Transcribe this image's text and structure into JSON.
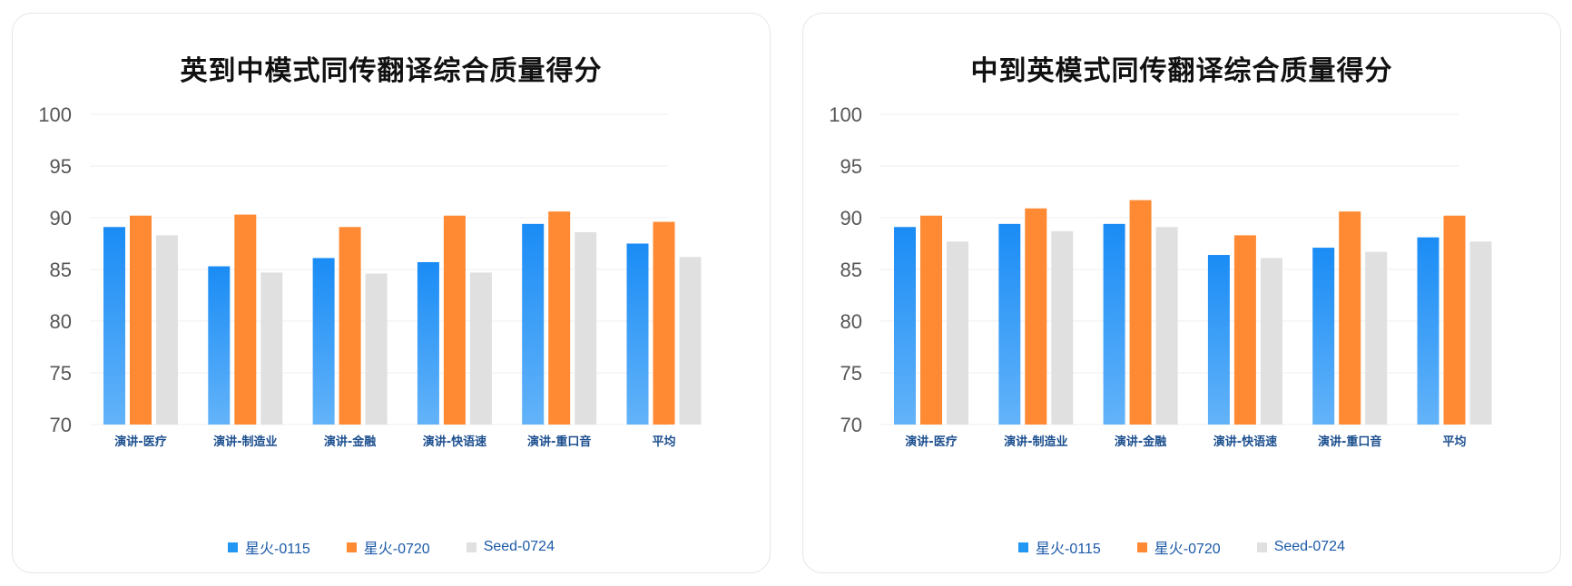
{
  "chart_data": [
    {
      "type": "bar",
      "title": "英到中模式同传翻译综合质量得分",
      "categories": [
        "演讲-医疗",
        "演讲-制造业",
        "演讲-金融",
        "演讲-快语速",
        "演讲-重口音",
        "平均"
      ],
      "series": [
        {
          "name": "星火-0115",
          "values": [
            89.1,
            85.3,
            86.1,
            85.7,
            89.4,
            87.5
          ],
          "color": "#2196f3"
        },
        {
          "name": "星火-0720",
          "values": [
            90.2,
            90.3,
            89.1,
            90.2,
            90.6,
            89.6
          ],
          "color": "#ff8a33"
        },
        {
          "name": "Seed-0724",
          "values": [
            88.3,
            84.7,
            84.6,
            84.7,
            88.6,
            86.2
          ],
          "color": "#e0e0e0"
        }
      ],
      "ylim": [
        70,
        100
      ],
      "yticks": [
        100,
        95,
        90,
        85,
        80,
        75,
        70
      ],
      "grid": true,
      "legend_position": "bottom"
    },
    {
      "type": "bar",
      "title": "中到英模式同传翻译综合质量得分",
      "categories": [
        "演讲-医疗",
        "演讲-制造业",
        "演讲-金融",
        "演讲-快语速",
        "演讲-重口音",
        "平均"
      ],
      "series": [
        {
          "name": "星火-0115",
          "values": [
            89.1,
            89.4,
            89.4,
            86.4,
            87.1,
            88.1
          ],
          "color": "#2196f3"
        },
        {
          "name": "星火-0720",
          "values": [
            90.2,
            90.9,
            91.7,
            88.3,
            90.6,
            90.2
          ],
          "color": "#ff8a33"
        },
        {
          "name": "Seed-0724",
          "values": [
            87.7,
            88.7,
            89.1,
            86.1,
            86.7,
            87.7
          ],
          "color": "#e0e0e0"
        }
      ],
      "ylim": [
        70,
        100
      ],
      "yticks": [
        100,
        95,
        90,
        85,
        80,
        75,
        70
      ],
      "grid": true,
      "legend_position": "bottom"
    }
  ]
}
